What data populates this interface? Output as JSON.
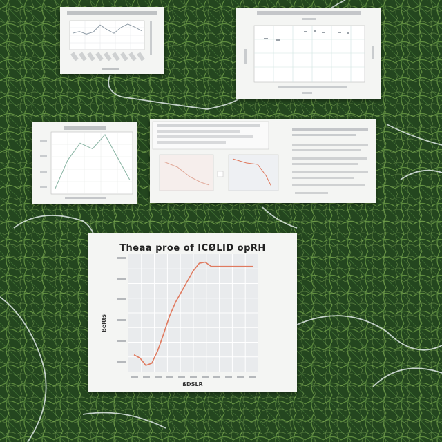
{
  "scene": {
    "background_colors": {
      "leaf_dark": "#173319",
      "leaf_mid": "#2f5a2a",
      "leaf_light": "#6f9a4a",
      "vein": "#dfe9e6"
    }
  },
  "cards": [
    {
      "id": "card-top-left",
      "kind": "line-chart-printout"
    },
    {
      "id": "card-top-right",
      "kind": "scatter-chart-printout"
    },
    {
      "id": "card-mid-left",
      "kind": "line-chart-printout"
    },
    {
      "id": "card-mid-center",
      "kind": "report-page-with-thumbnails"
    },
    {
      "id": "card-bottom-main",
      "kind": "line-chart-printout"
    }
  ],
  "main_chart": {
    "title": "Theaa proe of ICØLID opRH",
    "xlabel": "ßDSLR",
    "ylabel": "ßeRts",
    "line_color": "#e07a5f",
    "grid_color": "#d9dcdf"
  },
  "chart_data": [
    {
      "type": "line",
      "title": "Theaa proe of ICØLID opRH",
      "xlabel": "ßDSLR",
      "ylabel": "ßeRts",
      "x": [
        0,
        1,
        2,
        3,
        4,
        5,
        6,
        7,
        8,
        9,
        10,
        11,
        12,
        13,
        14,
        15,
        16,
        17,
        18,
        19,
        20
      ],
      "series": [
        {
          "values": [
            0.12,
            0.09,
            0.02,
            0.04,
            0.16,
            0.32,
            0.49,
            0.62,
            0.72,
            0.82,
            0.92,
            0.99,
            1.0,
            0.96,
            0.96,
            0.96,
            0.96,
            0.96,
            0.96,
            0.96,
            0.96
          ]
        }
      ],
      "ylim": [
        0,
        1.05
      ],
      "grid": true
    },
    {
      "type": "line",
      "series": [
        {
          "values": [
            0.55,
            0.62,
            0.52,
            0.6,
            0.88,
            0.7,
            0.55,
            0.78,
            0.92,
            0.8,
            0.65
          ]
        }
      ],
      "ylim": [
        0,
        1
      ],
      "grid": true
    },
    {
      "type": "line",
      "series": [
        {
          "values": [
            0.05,
            0.55,
            0.85,
            0.75,
            1.0,
            0.6,
            0.2
          ]
        }
      ],
      "ylim": [
        0,
        1
      ],
      "grid": true
    }
  ]
}
